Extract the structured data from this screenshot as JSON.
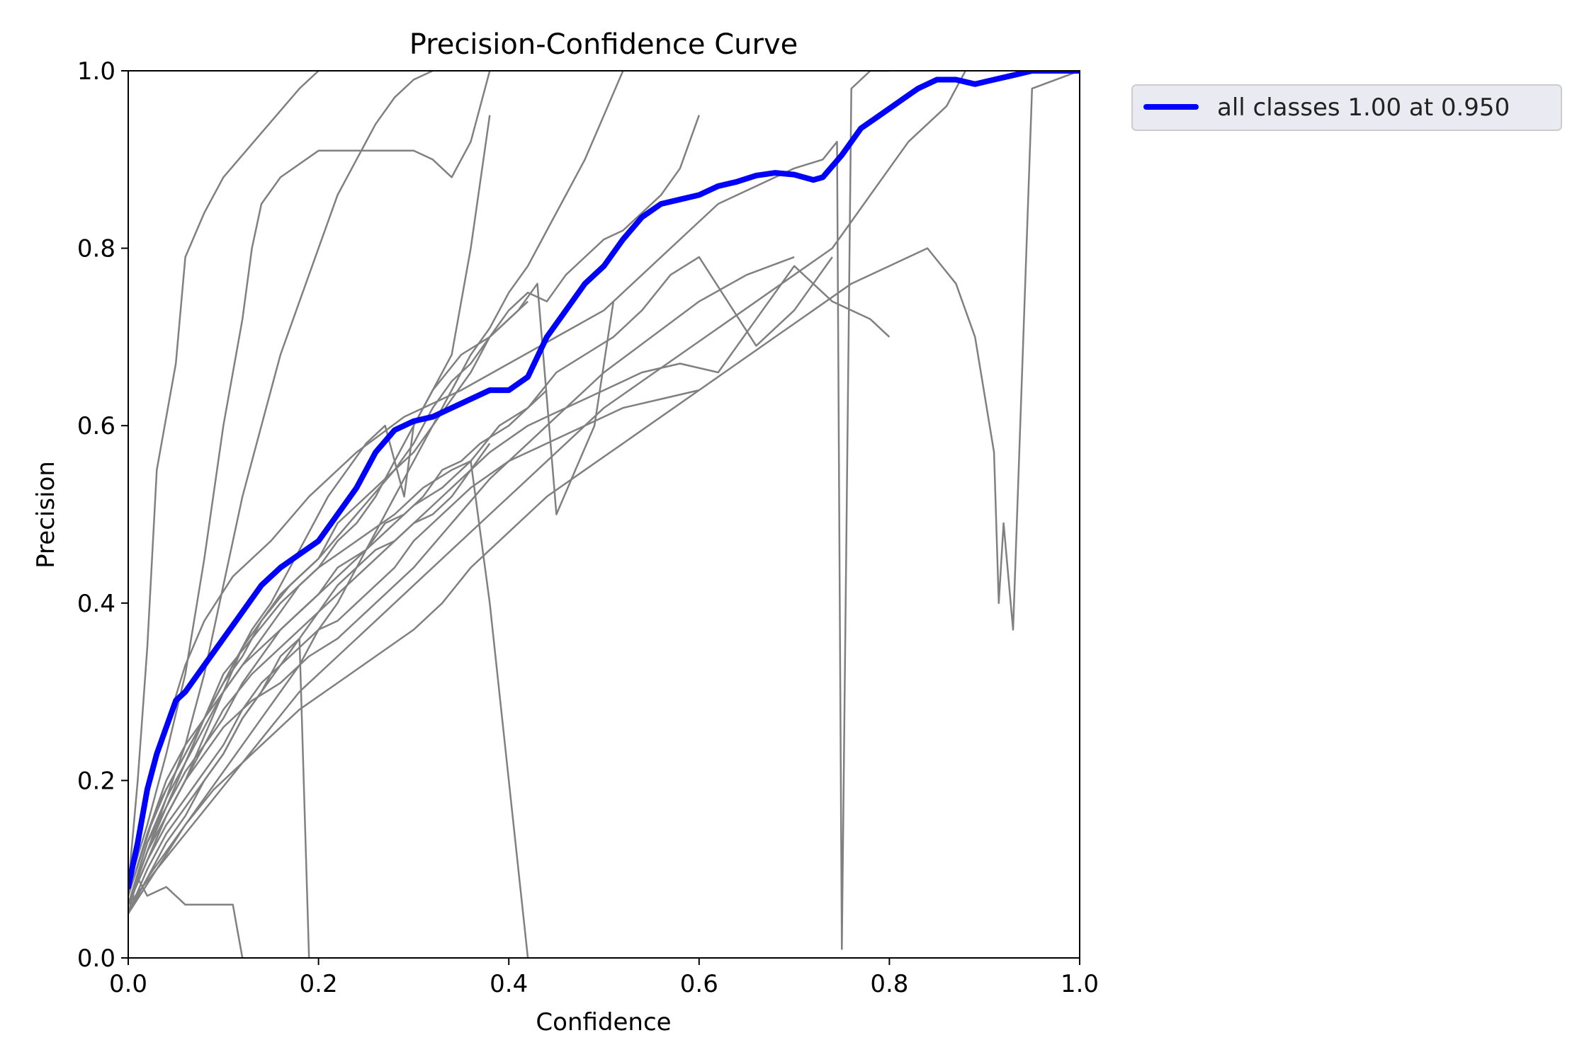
{
  "chart_data": {
    "type": "line",
    "title": "Precision-Confidence Curve",
    "xlabel": "Confidence",
    "ylabel": "Precision",
    "xlim": [
      0,
      1
    ],
    "ylim": [
      0,
      1
    ],
    "xticks": [
      "0.0",
      "0.2",
      "0.4",
      "0.6",
      "0.8",
      "1.0"
    ],
    "yticks": [
      "0.0",
      "0.2",
      "0.4",
      "0.6",
      "0.8",
      "1.0"
    ],
    "grid": false,
    "legend_position": "outside-top-right",
    "colors": {
      "summary": "#0000ff",
      "classes": "#808080"
    },
    "summary_series": {
      "name": "all classes 1.00 at 0.950",
      "x": [
        0.0,
        0.01,
        0.02,
        0.03,
        0.04,
        0.05,
        0.06,
        0.08,
        0.1,
        0.12,
        0.14,
        0.16,
        0.18,
        0.2,
        0.22,
        0.24,
        0.26,
        0.28,
        0.3,
        0.32,
        0.34,
        0.36,
        0.38,
        0.4,
        0.42,
        0.44,
        0.46,
        0.48,
        0.5,
        0.52,
        0.54,
        0.56,
        0.58,
        0.6,
        0.62,
        0.64,
        0.66,
        0.68,
        0.7,
        0.72,
        0.73,
        0.75,
        0.77,
        0.79,
        0.81,
        0.83,
        0.85,
        0.87,
        0.89,
        0.91,
        0.93,
        0.95,
        1.0
      ],
      "y": [
        0.08,
        0.13,
        0.19,
        0.23,
        0.26,
        0.29,
        0.3,
        0.33,
        0.36,
        0.39,
        0.42,
        0.44,
        0.455,
        0.47,
        0.5,
        0.53,
        0.57,
        0.595,
        0.605,
        0.61,
        0.62,
        0.63,
        0.64,
        0.64,
        0.655,
        0.7,
        0.73,
        0.76,
        0.78,
        0.81,
        0.835,
        0.85,
        0.855,
        0.86,
        0.87,
        0.875,
        0.882,
        0.885,
        0.883,
        0.877,
        0.88,
        0.905,
        0.935,
        0.95,
        0.965,
        0.98,
        0.99,
        0.99,
        0.985,
        0.99,
        0.995,
        1.0,
        1.0
      ]
    },
    "class_series": [
      {
        "x": [
          0.0,
          0.01,
          0.02,
          0.03,
          0.05,
          0.06,
          0.08,
          0.1,
          0.14,
          0.18,
          0.2
        ],
        "y": [
          0.08,
          0.2,
          0.35,
          0.55,
          0.67,
          0.79,
          0.84,
          0.88,
          0.93,
          0.98,
          1.0
        ]
      },
      {
        "x": [
          0.0,
          0.02,
          0.04,
          0.06,
          0.08,
          0.1,
          0.12,
          0.14,
          0.16,
          0.18,
          0.2,
          0.22,
          0.25,
          0.27,
          0.29,
          0.31,
          0.33,
          0.35,
          0.37,
          0.4,
          0.42,
          0.44
        ],
        "y": [
          0.07,
          0.14,
          0.2,
          0.24,
          0.27,
          0.3,
          0.33,
          0.35,
          0.37,
          0.39,
          0.41,
          0.44,
          0.46,
          0.49,
          0.5,
          0.52,
          0.55,
          0.56,
          0.58,
          0.6,
          0.62,
          0.64
        ]
      },
      {
        "x": [
          0.0,
          0.02,
          0.04,
          0.06,
          0.08,
          0.1,
          0.13,
          0.16,
          0.19,
          0.22,
          0.26,
          0.3,
          0.34,
          0.38,
          0.42,
          0.46,
          0.5,
          0.55,
          0.6,
          0.65,
          0.7
        ],
        "y": [
          0.06,
          0.12,
          0.16,
          0.2,
          0.23,
          0.26,
          0.29,
          0.31,
          0.34,
          0.36,
          0.4,
          0.44,
          0.49,
          0.54,
          0.58,
          0.62,
          0.66,
          0.7,
          0.74,
          0.77,
          0.79
        ]
      },
      {
        "x": [
          0.0,
          0.03,
          0.06,
          0.09,
          0.12,
          0.15,
          0.18,
          0.22,
          0.26,
          0.3,
          0.33,
          0.36,
          0.4,
          0.44,
          0.48,
          0.52,
          0.56,
          0.6,
          0.64,
          0.68,
          0.72,
          0.76,
          0.8,
          0.84,
          0.87,
          0.89,
          0.91,
          0.915,
          0.92,
          0.93,
          0.95,
          1.0
        ],
        "y": [
          0.05,
          0.1,
          0.15,
          0.19,
          0.22,
          0.25,
          0.28,
          0.31,
          0.34,
          0.37,
          0.4,
          0.44,
          0.48,
          0.52,
          0.55,
          0.58,
          0.61,
          0.64,
          0.67,
          0.7,
          0.73,
          0.76,
          0.78,
          0.8,
          0.76,
          0.7,
          0.57,
          0.4,
          0.49,
          0.37,
          0.98,
          1.0
        ]
      },
      {
        "x": [
          0.0,
          0.01,
          0.02,
          0.04,
          0.06,
          0.08,
          0.11,
          0.15,
          0.19,
          0.24,
          0.29,
          0.35,
          0.4,
          0.45,
          0.5,
          0.53,
          0.56,
          0.59,
          0.62,
          0.66,
          0.7,
          0.73,
          0.745,
          0.75,
          0.76,
          0.78,
          0.8
        ],
        "y": [
          0.07,
          0.13,
          0.19,
          0.26,
          0.33,
          0.38,
          0.43,
          0.47,
          0.52,
          0.57,
          0.61,
          0.64,
          0.67,
          0.7,
          0.73,
          0.76,
          0.79,
          0.82,
          0.85,
          0.87,
          0.89,
          0.9,
          0.92,
          0.01,
          0.98,
          1.0,
          1.0
        ]
      },
      {
        "x": [
          0.0,
          0.02,
          0.04,
          0.06,
          0.08,
          0.1,
          0.12,
          0.14,
          0.16,
          0.18,
          0.2,
          0.22,
          0.24,
          0.26,
          0.28,
          0.3,
          0.32,
          0.34,
          0.36,
          0.38,
          0.4,
          0.42,
          0.44,
          0.46,
          0.48,
          0.5,
          0.52
        ],
        "y": [
          0.05,
          0.09,
          0.12,
          0.15,
          0.18,
          0.21,
          0.24,
          0.27,
          0.3,
          0.33,
          0.37,
          0.4,
          0.44,
          0.48,
          0.52,
          0.56,
          0.6,
          0.64,
          0.68,
          0.71,
          0.75,
          0.78,
          0.82,
          0.86,
          0.9,
          0.95,
          1.0
        ]
      },
      {
        "x": [
          0.0,
          0.02,
          0.04,
          0.06,
          0.08,
          0.1,
          0.12,
          0.13,
          0.14,
          0.16,
          0.2,
          0.24,
          0.28,
          0.3,
          0.32,
          0.34,
          0.36,
          0.38
        ],
        "y": [
          0.08,
          0.15,
          0.23,
          0.32,
          0.45,
          0.6,
          0.72,
          0.8,
          0.85,
          0.88,
          0.91,
          0.91,
          0.91,
          0.91,
          0.9,
          0.88,
          0.92,
          1.0
        ]
      },
      {
        "x": [
          0.0,
          0.02,
          0.04,
          0.06,
          0.08,
          0.1,
          0.12,
          0.14,
          0.17,
          0.2,
          0.24,
          0.28,
          0.3,
          0.32,
          0.34,
          0.36,
          0.38,
          0.4,
          0.42,
          0.44,
          0.46,
          0.48,
          0.5,
          0.52,
          0.54,
          0.56,
          0.58,
          0.6
        ],
        "y": [
          0.06,
          0.11,
          0.16,
          0.2,
          0.25,
          0.3,
          0.35,
          0.38,
          0.42,
          0.45,
          0.5,
          0.55,
          0.58,
          0.62,
          0.65,
          0.67,
          0.7,
          0.73,
          0.75,
          0.74,
          0.77,
          0.79,
          0.81,
          0.82,
          0.84,
          0.86,
          0.89,
          0.95
        ]
      },
      {
        "x": [
          0.0,
          0.015,
          0.03,
          0.05,
          0.07,
          0.09,
          0.11,
          0.13,
          0.15,
          0.17,
          0.19,
          0.21,
          0.23,
          0.25,
          0.27,
          0.29,
          0.3,
          0.32,
          0.35,
          0.38,
          0.41,
          0.43,
          0.45,
          0.47,
          0.49,
          0.51
        ],
        "y": [
          0.07,
          0.12,
          0.17,
          0.21,
          0.25,
          0.29,
          0.33,
          0.37,
          0.4,
          0.44,
          0.48,
          0.52,
          0.55,
          0.58,
          0.6,
          0.52,
          0.6,
          0.64,
          0.68,
          0.7,
          0.73,
          0.76,
          0.5,
          0.55,
          0.6,
          0.74
        ]
      },
      {
        "x": [
          0.0,
          0.02,
          0.04,
          0.06,
          0.08,
          0.1,
          0.12,
          0.14,
          0.16,
          0.18,
          0.2,
          0.22,
          0.24,
          0.26,
          0.28,
          0.3,
          0.32,
          0.34,
          0.36,
          0.38
        ],
        "y": [
          0.06,
          0.13,
          0.18,
          0.22,
          0.26,
          0.3,
          0.33,
          0.36,
          0.39,
          0.42,
          0.44,
          0.47,
          0.49,
          0.52,
          0.56,
          0.6,
          0.64,
          0.68,
          0.8,
          0.95
        ]
      },
      {
        "x": [
          0.0,
          0.02,
          0.04,
          0.06,
          0.08,
          0.1,
          0.12,
          0.14,
          0.16,
          0.18,
          0.2,
          0.22,
          0.24,
          0.26,
          0.28,
          0.3,
          0.32,
          0.34,
          0.36,
          0.38
        ],
        "y": [
          0.05,
          0.1,
          0.14,
          0.17,
          0.2,
          0.23,
          0.27,
          0.3,
          0.33,
          0.36,
          0.39,
          0.42,
          0.44,
          0.46,
          0.47,
          0.49,
          0.5,
          0.52,
          0.55,
          0.58
        ]
      },
      {
        "x": [
          0.0,
          0.02,
          0.04,
          0.06,
          0.08,
          0.1,
          0.12,
          0.14,
          0.16,
          0.18,
          0.2,
          0.22,
          0.24,
          0.26,
          0.28,
          0.3,
          0.33,
          0.36,
          0.4,
          0.44,
          0.48,
          0.52,
          0.56,
          0.6
        ],
        "y": [
          0.06,
          0.11,
          0.15,
          0.18,
          0.21,
          0.24,
          0.28,
          0.31,
          0.33,
          0.35,
          0.37,
          0.38,
          0.4,
          0.42,
          0.44,
          0.47,
          0.5,
          0.53,
          0.56,
          0.58,
          0.6,
          0.62,
          0.63,
          0.64
        ]
      },
      {
        "x": [
          0.0,
          0.03,
          0.06,
          0.09,
          0.12,
          0.15,
          0.18,
          0.22,
          0.26,
          0.3,
          0.34,
          0.38,
          0.42,
          0.46,
          0.5,
          0.54,
          0.58,
          0.62,
          0.66,
          0.7,
          0.74,
          0.76,
          0.78,
          0.82,
          0.86,
          0.88
        ],
        "y": [
          0.06,
          0.1,
          0.14,
          0.18,
          0.22,
          0.26,
          0.3,
          0.34,
          0.38,
          0.42,
          0.46,
          0.5,
          0.54,
          0.58,
          0.62,
          0.65,
          0.68,
          0.71,
          0.74,
          0.77,
          0.8,
          0.83,
          0.86,
          0.92,
          0.96,
          1.0
        ]
      },
      {
        "x": [
          0.0,
          0.02,
          0.04,
          0.06,
          0.08,
          0.1,
          0.12,
          0.14,
          0.16,
          0.18,
          0.2,
          0.22,
          0.24,
          0.26,
          0.28,
          0.3,
          0.32,
          0.34,
          0.36,
          0.38,
          0.4,
          0.42
        ],
        "y": [
          0.07,
          0.14,
          0.19,
          0.23,
          0.27,
          0.31,
          0.34,
          0.38,
          0.41,
          0.43,
          0.45,
          0.49,
          0.51,
          0.53,
          0.55,
          0.57,
          0.6,
          0.63,
          0.66,
          0.7,
          0.72,
          0.74
        ]
      },
      {
        "x": [
          0.0,
          0.02,
          0.04,
          0.06,
          0.08,
          0.1,
          0.12,
          0.14,
          0.16,
          0.18,
          0.2,
          0.22,
          0.24,
          0.27,
          0.3,
          0.33,
          0.36,
          0.39,
          0.42,
          0.45,
          0.48,
          0.51,
          0.54,
          0.57,
          0.6,
          0.63,
          0.66,
          0.7,
          0.74
        ],
        "y": [
          0.06,
          0.13,
          0.17,
          0.21,
          0.24,
          0.27,
          0.31,
          0.34,
          0.37,
          0.39,
          0.41,
          0.43,
          0.45,
          0.48,
          0.51,
          0.53,
          0.56,
          0.6,
          0.62,
          0.66,
          0.68,
          0.7,
          0.73,
          0.77,
          0.79,
          0.74,
          0.69,
          0.73,
          0.79
        ]
      },
      {
        "x": [
          0.0,
          0.02,
          0.04,
          0.06,
          0.08,
          0.1,
          0.12,
          0.14,
          0.16,
          0.18,
          0.2,
          0.22,
          0.24,
          0.26,
          0.28,
          0.3,
          0.32
        ],
        "y": [
          0.06,
          0.12,
          0.18,
          0.24,
          0.32,
          0.42,
          0.52,
          0.6,
          0.68,
          0.74,
          0.8,
          0.86,
          0.9,
          0.94,
          0.97,
          0.99,
          1.0
        ]
      },
      {
        "x": [
          0.0,
          0.01,
          0.02,
          0.04,
          0.06,
          0.08,
          0.1,
          0.11,
          0.115,
          0.12
        ],
        "y": [
          0.05,
          0.09,
          0.07,
          0.08,
          0.06,
          0.06,
          0.06,
          0.06,
          0.03,
          0.0
        ]
      },
      {
        "x": [
          0.0,
          0.02,
          0.04,
          0.06,
          0.08,
          0.1,
          0.12,
          0.14,
          0.16,
          0.18,
          0.19
        ],
        "y": [
          0.05,
          0.09,
          0.13,
          0.16,
          0.2,
          0.23,
          0.27,
          0.3,
          0.34,
          0.36,
          0.0
        ]
      },
      {
        "x": [
          0.0,
          0.02,
          0.04,
          0.06,
          0.08,
          0.1,
          0.13,
          0.16,
          0.2,
          0.24,
          0.28,
          0.31,
          0.34,
          0.36,
          0.38,
          0.4,
          0.42
        ],
        "y": [
          0.06,
          0.12,
          0.17,
          0.22,
          0.27,
          0.32,
          0.36,
          0.4,
          0.44,
          0.47,
          0.5,
          0.53,
          0.55,
          0.56,
          0.4,
          0.2,
          0.0
        ]
      },
      {
        "x": [
          0.0,
          0.02,
          0.04,
          0.06,
          0.08,
          0.1,
          0.13,
          0.17,
          0.21,
          0.25,
          0.29,
          0.32,
          0.35,
          0.38,
          0.42,
          0.46,
          0.5,
          0.54,
          0.58,
          0.62,
          0.66,
          0.7,
          0.74,
          0.78,
          0.8
        ],
        "y": [
          0.06,
          0.11,
          0.16,
          0.2,
          0.24,
          0.28,
          0.32,
          0.36,
          0.4,
          0.44,
          0.48,
          0.51,
          0.54,
          0.57,
          0.6,
          0.62,
          0.64,
          0.66,
          0.67,
          0.66,
          0.72,
          0.78,
          0.74,
          0.72,
          0.7
        ]
      }
    ]
  }
}
